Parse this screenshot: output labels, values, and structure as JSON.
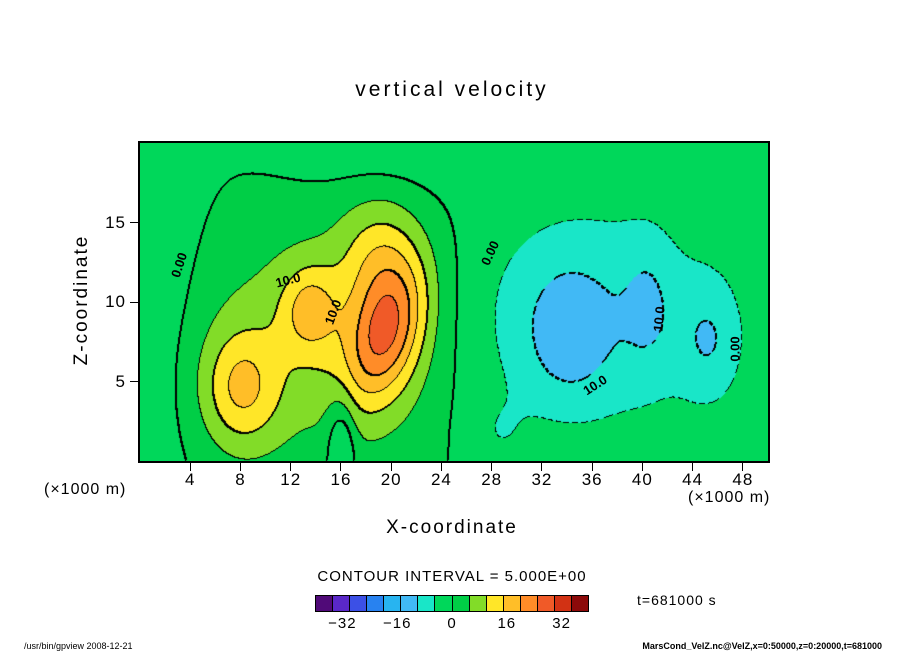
{
  "title": "vertical velocity",
  "annotations": {
    "contour_interval": "CONTOUR INTERVAL = 5.000E+00",
    "time": "t=681000 s"
  },
  "footer": {
    "left": "/usr/bin/gpview  2008-12-21",
    "right": "MarsCond_VelZ.nc@VelZ,x=0:50000,z=0:20000,t=681000"
  },
  "chart_data": {
    "type": "contour",
    "title": "vertical velocity",
    "xlabel": "X-coordinate",
    "ylabel": "Z-coordinate",
    "x_units": "(×1000 m)",
    "y_units": "(×1000 m)",
    "xlim": [
      0,
      50
    ],
    "ylim": [
      0,
      20
    ],
    "xticks": [
      4,
      8,
      12,
      16,
      20,
      24,
      28,
      32,
      36,
      40,
      44,
      48
    ],
    "yticks": [
      5,
      10,
      15
    ],
    "grid": false,
    "contour_interval": 5,
    "contour_interval_label": "CONTOUR INTERVAL = 5.000E+00",
    "time_label": "t=681000 s",
    "line_style": {
      "positive": "solid",
      "negative": "dashed",
      "thick_every": 10,
      "zero": "thick-solid"
    },
    "extrema": {
      "max": 30,
      "max_at": [
        19.5,
        8
      ],
      "min": -15,
      "min_at": [
        34,
        8
      ]
    },
    "colorbar": {
      "min": -40,
      "max": 40,
      "ticks": [
        -32,
        -16,
        0,
        16,
        32
      ],
      "colors": [
        "#500a78",
        "#5a28c8",
        "#3c50e6",
        "#2882f0",
        "#28b4f0",
        "#41b9f5",
        "#19e6c8",
        "#00d75a",
        "#00ce46",
        "#82dc28",
        "#ffe628",
        "#ffbe28",
        "#ff8c28",
        "#f05a28",
        "#d23214",
        "#8c0a0a"
      ]
    },
    "contour_labels": [
      {
        "text": "0.00",
        "fx": 0.062,
        "fy": 0.384,
        "rot": -72
      },
      {
        "text": "10.0",
        "fx": 0.236,
        "fy": 0.431,
        "rot": -15
      },
      {
        "text": "10.0",
        "fx": 0.307,
        "fy": 0.531,
        "rot": -70
      },
      {
        "text": "0.00",
        "fx": 0.557,
        "fy": 0.346,
        "rot": -65
      },
      {
        "text": "10.0",
        "fx": 0.724,
        "fy": 0.761,
        "rot": -33
      },
      {
        "text": "10.0",
        "fx": 0.826,
        "fy": 0.553,
        "rot": -85
      },
      {
        "text": "0.00",
        "fx": 0.947,
        "fy": 0.648,
        "rot": -90
      }
    ],
    "field_gaussians": [
      {
        "amp": 7,
        "x": 12,
        "z": 7.5,
        "sx": 6.5,
        "sz": 5.5,
        "rot": 0
      },
      {
        "amp": 7,
        "x": 20,
        "z": 9,
        "sx": 3.2,
        "sz": 5.0,
        "rot": 0
      },
      {
        "amp": 12,
        "x": 8,
        "z": 4.5,
        "sx": 2.2,
        "sz": 2.6,
        "rot": 0
      },
      {
        "amp": 11,
        "x": 13.5,
        "z": 9.5,
        "sx": 1.6,
        "sz": 2.0,
        "rot": 0
      },
      {
        "amp": 17,
        "x": 19.5,
        "z": 8,
        "sx": 1.9,
        "sz": 3.2,
        "rot": -25
      },
      {
        "amp": 7,
        "x": 19,
        "z": 13,
        "sx": 2.2,
        "sz": 2.6,
        "rot": 0
      },
      {
        "amp": -6,
        "x": 20,
        "z": 21.5,
        "sx": 7,
        "sz": 2.8,
        "rot": 0
      },
      {
        "amp": -9,
        "x": 36,
        "z": 9,
        "sx": 7.5,
        "sz": 5.5,
        "rot": 0
      },
      {
        "amp": -6,
        "x": 34,
        "z": 8,
        "sx": 2.2,
        "sz": 2.8,
        "rot": 0
      },
      {
        "amp": -6.5,
        "x": 45.5,
        "z": 7.5,
        "sx": 1.8,
        "sz": 2.8,
        "rot": 0
      },
      {
        "amp": -4,
        "x": 40.5,
        "z": 10,
        "sx": 1.4,
        "sz": 3,
        "rot": 0
      },
      {
        "amp": -5,
        "x": 0,
        "z": 11,
        "sx": 3.5,
        "sz": 10,
        "rot": 0
      },
      {
        "amp": -9,
        "x": 16,
        "z": 1,
        "sx": 0.8,
        "sz": 2.2,
        "rot": 0
      },
      {
        "amp": -3,
        "x": 28.5,
        "z": 1.5,
        "sx": 1.8,
        "sz": 1.8,
        "rot": 0
      }
    ]
  }
}
